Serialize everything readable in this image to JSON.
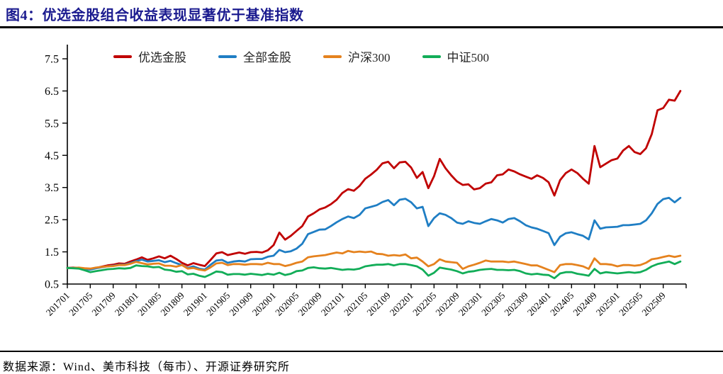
{
  "figure": {
    "title": "图4：优选金股组合收益表现显著优于基准指数",
    "source": "数据来源：Wind、美市科技（每市）、开源证券研究所"
  },
  "colors": {
    "title": "#1b1b8f",
    "rule": "#000000",
    "axis": "#000000",
    "legend_text": "#262626"
  },
  "chart_data": {
    "type": "line",
    "title": "优选金股组合收益表现显著优于基准指数",
    "x_unit": "month",
    "x_start": "201701",
    "x_tick_labels": [
      "201701",
      "201705",
      "201709",
      "201801",
      "201805",
      "201809",
      "201901",
      "201905",
      "201909",
      "202001",
      "202005",
      "202009",
      "202101",
      "202105",
      "202109",
      "202201",
      "202205",
      "202209",
      "202301",
      "202305",
      "202309",
      "202401",
      "202405",
      "202409",
      "202501",
      "202505",
      "202509"
    ],
    "y_ticks": [
      0.5,
      1.5,
      2.5,
      3.5,
      4.5,
      5.5,
      6.5,
      7.5
    ],
    "ylim": [
      0.5,
      7.5
    ],
    "grid": false,
    "legend_position": "top",
    "series": [
      {
        "name": "优选金股",
        "color": "#c00000",
        "values": [
          1.0,
          1.01,
          1.0,
          0.97,
          0.96,
          1.0,
          1.04,
          1.08,
          1.1,
          1.14,
          1.13,
          1.2,
          1.26,
          1.33,
          1.25,
          1.3,
          1.36,
          1.3,
          1.38,
          1.28,
          1.16,
          1.08,
          1.15,
          1.1,
          1.06,
          1.25,
          1.45,
          1.49,
          1.4,
          1.44,
          1.48,
          1.44,
          1.49,
          1.5,
          1.48,
          1.55,
          1.71,
          2.1,
          1.88,
          2.0,
          2.15,
          2.3,
          2.6,
          2.7,
          2.82,
          2.88,
          2.98,
          3.12,
          3.33,
          3.45,
          3.4,
          3.55,
          3.77,
          3.9,
          4.05,
          4.25,
          4.3,
          4.1,
          4.28,
          4.3,
          4.12,
          3.8,
          3.98,
          3.48,
          3.85,
          4.39,
          4.1,
          3.88,
          3.69,
          3.58,
          3.6,
          3.44,
          3.48,
          3.62,
          3.66,
          3.88,
          3.91,
          4.06,
          4.0,
          3.91,
          3.84,
          3.77,
          3.88,
          3.8,
          3.66,
          3.25,
          3.73,
          3.95,
          4.06,
          3.95,
          3.77,
          3.62,
          4.79,
          4.13,
          4.24,
          4.35,
          4.4,
          4.65,
          4.79,
          4.6,
          4.54,
          4.72,
          5.16,
          5.9,
          5.97,
          6.23,
          6.2,
          6.5
        ]
      },
      {
        "name": "全部金股",
        "color": "#1f7ec4",
        "values": [
          1.0,
          1.0,
          0.99,
          0.97,
          0.95,
          0.99,
          1.02,
          1.05,
          1.07,
          1.1,
          1.1,
          1.15,
          1.21,
          1.26,
          1.2,
          1.22,
          1.24,
          1.18,
          1.22,
          1.15,
          1.09,
          1.0,
          1.05,
          0.98,
          0.95,
          1.1,
          1.23,
          1.25,
          1.16,
          1.2,
          1.22,
          1.2,
          1.27,
          1.28,
          1.28,
          1.35,
          1.38,
          1.56,
          1.49,
          1.52,
          1.6,
          1.75,
          2.05,
          2.12,
          2.19,
          2.2,
          2.3,
          2.42,
          2.52,
          2.6,
          2.55,
          2.65,
          2.85,
          2.9,
          2.95,
          3.05,
          3.11,
          2.95,
          3.12,
          3.15,
          3.04,
          2.85,
          2.9,
          2.3,
          2.55,
          2.7,
          2.65,
          2.55,
          2.41,
          2.37,
          2.45,
          2.4,
          2.37,
          2.45,
          2.52,
          2.48,
          2.41,
          2.52,
          2.55,
          2.45,
          2.33,
          2.26,
          2.22,
          2.15,
          2.08,
          1.71,
          1.97,
          2.08,
          2.11,
          2.05,
          2.0,
          1.89,
          2.48,
          2.22,
          2.26,
          2.27,
          2.28,
          2.33,
          2.33,
          2.35,
          2.37,
          2.48,
          2.7,
          2.99,
          3.14,
          3.18,
          3.04,
          3.18
        ]
      },
      {
        "name": "沪深300",
        "color": "#e5821e",
        "values": [
          1.0,
          1.0,
          1.01,
          0.99,
          0.98,
          1.01,
          1.03,
          1.05,
          1.06,
          1.09,
          1.09,
          1.13,
          1.19,
          1.15,
          1.11,
          1.13,
          1.14,
          1.07,
          1.07,
          1.04,
          1.09,
          0.98,
          1.0,
          0.95,
          0.92,
          1.02,
          1.14,
          1.16,
          1.09,
          1.12,
          1.12,
          1.1,
          1.12,
          1.12,
          1.11,
          1.16,
          1.12,
          1.12,
          1.06,
          1.1,
          1.16,
          1.2,
          1.33,
          1.36,
          1.38,
          1.4,
          1.44,
          1.48,
          1.45,
          1.53,
          1.49,
          1.51,
          1.49,
          1.51,
          1.44,
          1.43,
          1.38,
          1.4,
          1.38,
          1.42,
          1.3,
          1.32,
          1.2,
          1.05,
          1.12,
          1.27,
          1.2,
          1.18,
          1.16,
          0.97,
          1.05,
          1.1,
          1.16,
          1.23,
          1.2,
          1.2,
          1.2,
          1.18,
          1.2,
          1.16,
          1.12,
          1.08,
          1.08,
          1.01,
          0.94,
          0.87,
          1.09,
          1.12,
          1.12,
          1.09,
          1.05,
          0.97,
          1.3,
          1.12,
          1.12,
          1.1,
          1.05,
          1.09,
          1.09,
          1.07,
          1.09,
          1.16,
          1.27,
          1.3,
          1.34,
          1.38,
          1.34,
          1.38
        ]
      },
      {
        "name": "中证500",
        "color": "#12ad58",
        "values": [
          1.0,
          0.99,
          0.98,
          0.93,
          0.87,
          0.9,
          0.93,
          0.96,
          0.97,
          0.99,
          0.98,
          1.0,
          1.08,
          1.06,
          1.05,
          1.02,
          1.03,
          0.95,
          0.93,
          0.88,
          0.9,
          0.8,
          0.82,
          0.76,
          0.72,
          0.8,
          0.89,
          0.87,
          0.79,
          0.81,
          0.81,
          0.79,
          0.82,
          0.8,
          0.78,
          0.82,
          0.79,
          0.85,
          0.78,
          0.82,
          0.9,
          0.92,
          1.0,
          1.02,
          0.99,
          0.98,
          1.0,
          0.97,
          0.94,
          0.96,
          0.95,
          0.98,
          1.05,
          1.08,
          1.1,
          1.1,
          1.12,
          1.08,
          1.12,
          1.12,
          1.09,
          1.05,
          0.95,
          0.76,
          0.85,
          1.01,
          0.98,
          0.95,
          0.9,
          0.83,
          0.88,
          0.9,
          0.94,
          0.96,
          0.97,
          0.94,
          0.94,
          0.93,
          0.94,
          0.9,
          0.83,
          0.8,
          0.82,
          0.79,
          0.78,
          0.68,
          0.83,
          0.87,
          0.87,
          0.82,
          0.79,
          0.76,
          0.97,
          0.83,
          0.87,
          0.85,
          0.83,
          0.85,
          0.87,
          0.85,
          0.87,
          0.94,
          1.05,
          1.12,
          1.16,
          1.2,
          1.12,
          1.2
        ]
      }
    ]
  }
}
